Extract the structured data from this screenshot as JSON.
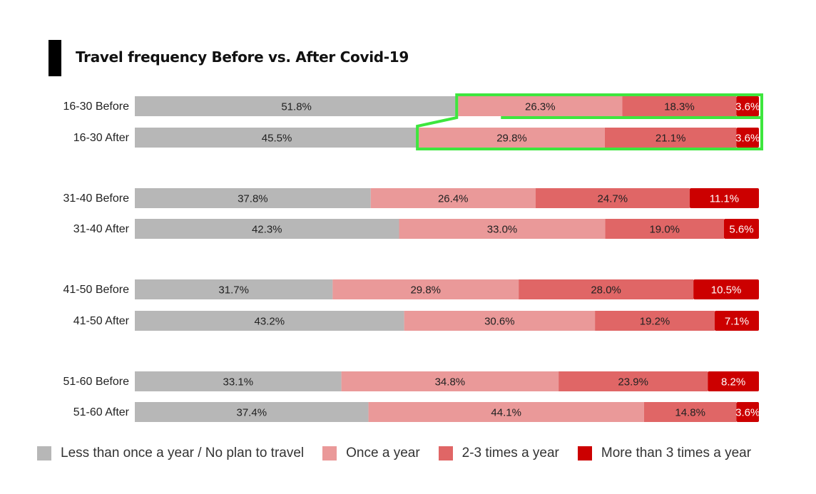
{
  "title": "Travel frequency Before vs. After Covid-19",
  "colors": {
    "less_than_once": "#b7b7b7",
    "once": "#ea9999",
    "two_three": "#e06666",
    "more_than_three": "#cc0000",
    "highlight": "#3ee63e"
  },
  "chart_data": {
    "type": "bar",
    "orientation": "horizontal",
    "stacked": true,
    "normalized": true,
    "title": "Travel frequency Before vs. After Covid-19",
    "categories": [
      "16-30 Before",
      "16-30 After",
      "31-40 Before",
      "31-40 After",
      "41-50 Before",
      "41-50 After",
      "51-60 Before",
      "51-60 After"
    ],
    "series": [
      {
        "name": "Less than once a year / No plan to travel",
        "values": [
          51.8,
          45.5,
          37.8,
          42.3,
          31.7,
          43.2,
          33.1,
          37.4
        ]
      },
      {
        "name": "Once a year",
        "values": [
          26.3,
          29.8,
          26.4,
          33.0,
          29.8,
          30.6,
          34.8,
          44.1
        ]
      },
      {
        "name": "2-3 times a year",
        "values": [
          18.3,
          21.1,
          24.7,
          19.0,
          28.0,
          19.2,
          23.9,
          14.8
        ]
      },
      {
        "name": "More than 3 times a year",
        "values": [
          3.6,
          3.6,
          11.1,
          5.6,
          10.5,
          7.1,
          8.2,
          3.6
        ]
      }
    ],
    "value_format": "percent_1dp",
    "legend": "bottom",
    "grid": false,
    "annotation": "green outline highlighting non-grey segments of 16-30 Before and 16-30 After"
  }
}
